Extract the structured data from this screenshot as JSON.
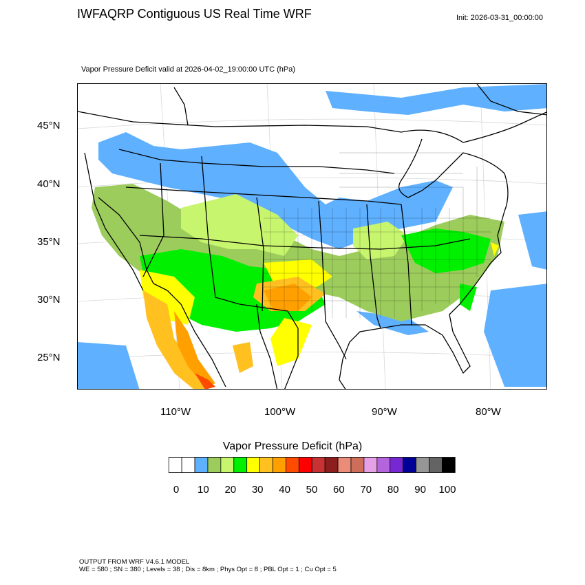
{
  "header": {
    "title": "IWFAQRP Contiguous US Real Time WRF",
    "init": "Init: 2026-03-31_00:00:00",
    "subtitle": "Vapor Pressure Deficit valid at 2026-04-02_19:00:00 UTC   (hPa)"
  },
  "map": {
    "lat_labels": [
      "45°N",
      "40°N",
      "35°N",
      "30°N",
      "25°N"
    ],
    "lon_labels": [
      "110°W",
      "100°W",
      "90°W",
      "80°W"
    ]
  },
  "colorbar": {
    "title": "Vapor Pressure Deficit  (hPa)",
    "colors": [
      "#ffffff",
      "#ffffff",
      "#5fb0ff",
      "#9ccc5c",
      "#c8f56e",
      "#00f000",
      "#ffff00",
      "#ffc020",
      "#ffa000",
      "#ff4b00",
      "#ff0000",
      "#c83232",
      "#8c1e1e",
      "#eb8c78",
      "#cd6e5a",
      "#e6a0e6",
      "#b464dc",
      "#7828d2",
      "#000096",
      "#969696",
      "#646464",
      "#000000"
    ],
    "tick_labels": [
      "0",
      "10",
      "20",
      "30",
      "40",
      "50",
      "60",
      "70",
      "80",
      "90",
      "100"
    ]
  },
  "footer": {
    "line1": "OUTPUT FROM WRF V4.6.1 MODEL",
    "line2": "WE = 580 ; SN = 380 ; Levels = 38 ; Dis = 8km ; Phys Opt = 8 ; PBL Opt = 1 ; Cu Opt = 5"
  }
}
